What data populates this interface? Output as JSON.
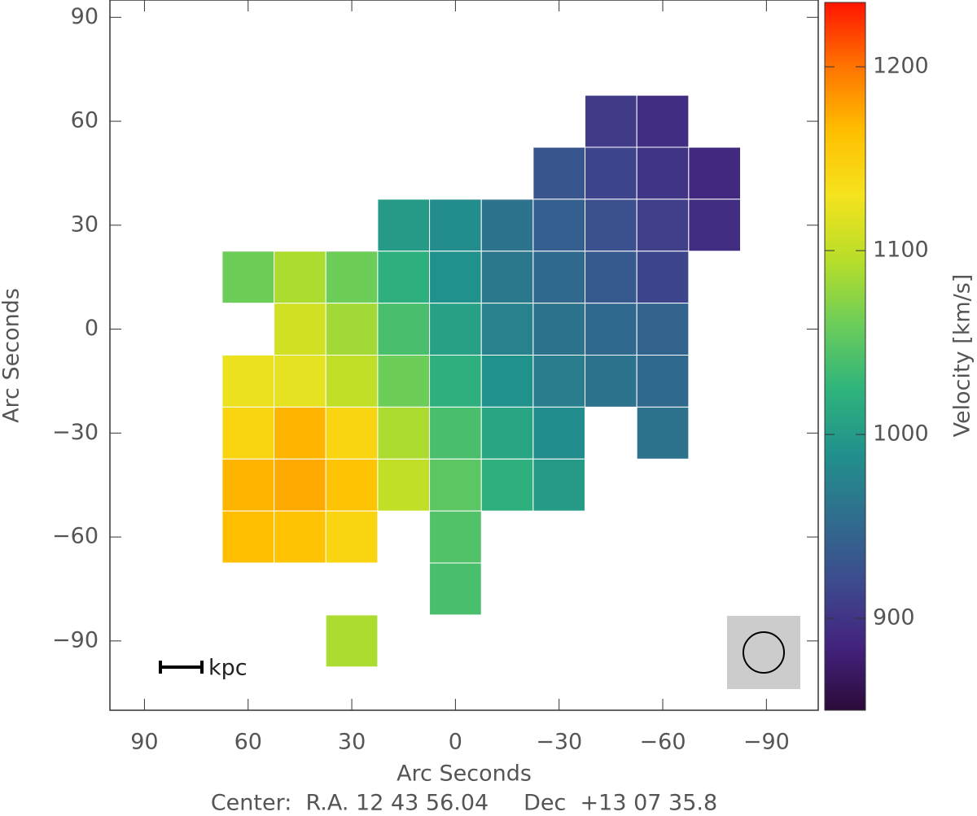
{
  "chart_data": {
    "type": "heatmap",
    "xlabel": "Arc Seconds",
    "ylabel": "Arc Seconds",
    "zlabel": "Velocity [km/s]",
    "annotations": [
      "kpc",
      "Center:  R.A. 12 43 56.04     Dec  +13 07 35.8"
    ],
    "x": [
      75,
      60,
      45,
      30,
      15,
      0,
      -15,
      -30,
      -45,
      -60,
      -75
    ],
    "y": [
      60,
      45,
      30,
      15,
      0,
      -15,
      -30,
      -45,
      -60,
      -75,
      -90
    ],
    "z": [
      [
        null,
        null,
        null,
        null,
        null,
        null,
        null,
        null,
        905,
        895,
        null
      ],
      [
        null,
        null,
        null,
        null,
        null,
        null,
        null,
        930,
        915,
        900,
        890
      ],
      [
        null,
        null,
        null,
        null,
        1000,
        985,
        960,
        940,
        925,
        910,
        895
      ],
      [
        null,
        1060,
        1090,
        1060,
        1020,
        990,
        965,
        950,
        935,
        915,
        null
      ],
      [
        null,
        null,
        1110,
        1085,
        1040,
        1005,
        975,
        960,
        950,
        945,
        null
      ],
      [
        null,
        1125,
        1120,
        1100,
        1060,
        1020,
        990,
        970,
        960,
        950,
        null
      ],
      [
        null,
        1145,
        1170,
        1145,
        1090,
        1040,
        1010,
        985,
        null,
        960,
        null
      ],
      [
        null,
        1170,
        1175,
        1160,
        1100,
        1050,
        1020,
        1000,
        null,
        null,
        null
      ],
      [
        null,
        1165,
        1160,
        1145,
        null,
        1045,
        null,
        null,
        null,
        null,
        null
      ],
      [
        null,
        null,
        null,
        null,
        null,
        1040,
        null,
        null,
        null,
        null,
        null
      ],
      [
        null,
        null,
        null,
        1090,
        null,
        null,
        null,
        null,
        null,
        null,
        null
      ]
    ],
    "xlim": [
      100,
      -105
    ],
    "ylim": [
      -110,
      95
    ],
    "xticks": [
      90,
      60,
      30,
      0,
      {
        "value": -30,
        "label": "−30"
      },
      {
        "value": -60,
        "label": "−60"
      },
      {
        "value": -90,
        "label": "−90"
      }
    ],
    "yticks": [
      90,
      60,
      30,
      0,
      {
        "value": -30,
        "label": "−30"
      },
      {
        "value": -60,
        "label": "−60"
      },
      {
        "value": -90,
        "label": "−90"
      }
    ],
    "zlim": [
      850,
      1235
    ],
    "zticks": [
      900,
      1000,
      1100,
      1200
    ],
    "colorscale": [
      "#2c0a3a",
      "#43237e",
      "#3d4b8e",
      "#2f6e8e",
      "#21918c",
      "#2fb47c",
      "#6ccd59",
      "#b8de29",
      "#f5e31e",
      "#ffbf00",
      "#ff7400",
      "#ff1400"
    ]
  }
}
